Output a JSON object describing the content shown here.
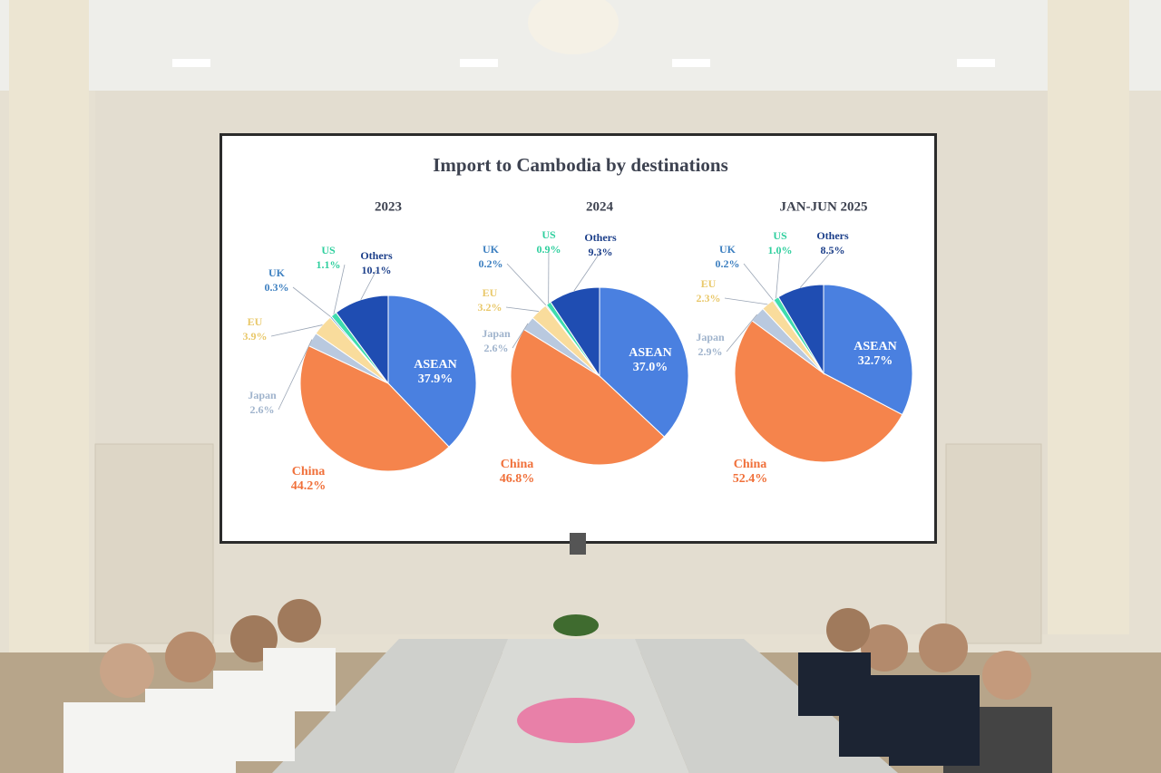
{
  "title": "Import to Cambodia by destinations",
  "chart_data": [
    {
      "type": "pie",
      "title": "2023",
      "categories": [
        "ASEAN",
        "China",
        "Japan",
        "EU",
        "UK",
        "US",
        "Others"
      ],
      "values": [
        37.9,
        44.2,
        2.6,
        3.9,
        0.3,
        1.1,
        10.1
      ],
      "value_labels": [
        "37.9%",
        "44.2%",
        "2.6%",
        "3.9%",
        "0.3%",
        "1.1%",
        "10.1%"
      ],
      "colors": [
        "#4a80e0",
        "#f5844c",
        "#b9c9df",
        "#f9dc9c",
        "#4f8fc8",
        "#3fdcae",
        "#1f4db2"
      ]
    },
    {
      "type": "pie",
      "title": "2024",
      "categories": [
        "ASEAN",
        "China",
        "Japan",
        "EU",
        "UK",
        "US",
        "Others"
      ],
      "values": [
        37.0,
        46.8,
        2.6,
        3.2,
        0.2,
        0.9,
        9.3
      ],
      "value_labels": [
        "37.0%",
        "46.8%",
        "2.6%",
        "3.2%",
        "0.2%",
        "0.9%",
        "9.3%"
      ],
      "colors": [
        "#4a80e0",
        "#f5844c",
        "#b9c9df",
        "#f9dc9c",
        "#4f8fc8",
        "#3fdcae",
        "#1f4db2"
      ]
    },
    {
      "type": "pie",
      "title": "JAN-JUN 2025",
      "categories": [
        "ASEAN",
        "China",
        "Japan",
        "EU",
        "UK",
        "US",
        "Others"
      ],
      "values": [
        32.7,
        52.4,
        2.9,
        2.3,
        0.2,
        1.0,
        8.5
      ],
      "value_labels": [
        "32.7%",
        "52.4%",
        "2.9%",
        "2.3%",
        "0.2%",
        "1.0%",
        "8.5%"
      ],
      "colors": [
        "#4a80e0",
        "#f5844c",
        "#b9c9df",
        "#f9dc9c",
        "#4f8fc8",
        "#3fdcae",
        "#1f4db2"
      ]
    }
  ]
}
